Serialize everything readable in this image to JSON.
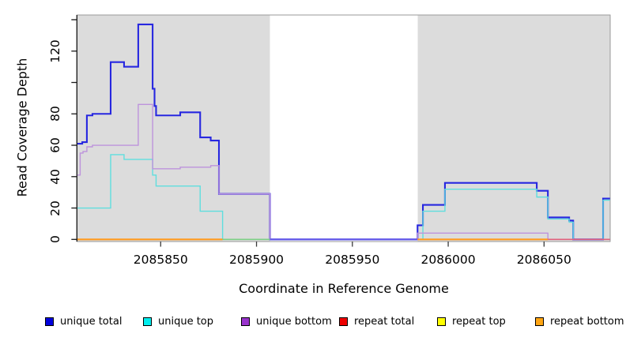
{
  "y_axis": {
    "title": "Read Coverage Depth",
    "range": [
      0,
      143
    ],
    "ticks": [
      {
        "value": 0,
        "label": "0"
      },
      {
        "value": 20,
        "label": "20"
      },
      {
        "value": 40,
        "label": "40"
      },
      {
        "value": 60,
        "label": "60"
      },
      {
        "value": 80,
        "label": "80"
      },
      {
        "value": 100,
        "label": ""
      },
      {
        "value": 120,
        "label": "120"
      },
      {
        "value": 140,
        "label": ""
      }
    ]
  },
  "x_axis": {
    "title": "Coordinate in Reference Genome",
    "range": [
      2085806.3,
      2086084.4
    ],
    "ticks": [
      {
        "value": 2085850,
        "label": "2085850"
      },
      {
        "value": 2085900,
        "label": "2085900"
      },
      {
        "value": 2085950,
        "label": "2085950"
      },
      {
        "value": 2086000,
        "label": "2086000"
      },
      {
        "value": 2086050,
        "label": "2086050"
      }
    ]
  },
  "plot": {
    "background_color": "#ffffff",
    "covered_region_color": "#dcdcdc",
    "border_color": "#9a9a9a",
    "axis_color": "#1a1a1a",
    "covered_regions": [
      {
        "from": 2085806.3,
        "to": 2085907.0
      },
      {
        "from": 2085984.0,
        "to": 2086084.4
      }
    ]
  },
  "chart_data": {
    "type": "line",
    "style": "step",
    "title": "",
    "xlabel": "Coordinate in Reference Genome",
    "ylabel": "Read Coverage Depth",
    "xlim": [
      2085806.3,
      2086084.4
    ],
    "ylim": [
      0,
      143
    ],
    "grid": false,
    "legend_position": "bottom",
    "series": [
      {
        "name": "unique total",
        "color": "#2727e0",
        "stroke_width": 2.1,
        "points": [
          [
            2085806.3,
            61
          ],
          [
            2085809.1,
            62
          ],
          [
            2085811.5,
            79
          ],
          [
            2085814.4,
            80
          ],
          [
            2085823.9,
            113
          ],
          [
            2085830.9,
            110
          ],
          [
            2085838.3,
            137
          ],
          [
            2085845.8,
            96
          ],
          [
            2085846.8,
            85
          ],
          [
            2085847.6,
            79
          ],
          [
            2085860.2,
            81
          ],
          [
            2085870.6,
            65
          ],
          [
            2085876.1,
            63
          ],
          [
            2085880.4,
            29
          ],
          [
            2085907.0,
            0
          ],
          [
            2085984.0,
            9
          ],
          [
            2085986.8,
            22
          ],
          [
            2085998.3,
            36
          ],
          [
            2086046.2,
            31
          ],
          [
            2086052.0,
            14
          ],
          [
            2086063.1,
            12
          ],
          [
            2086065.2,
            0
          ],
          [
            2086080.8,
            26
          ],
          [
            2086084.4,
            26
          ]
        ]
      },
      {
        "name": "unique top",
        "color": "#5fdede",
        "stroke_width": 1.4,
        "points": [
          [
            2085806.3,
            20
          ],
          [
            2085823.9,
            54
          ],
          [
            2085830.9,
            51
          ],
          [
            2085845.8,
            41
          ],
          [
            2085847.6,
            34
          ],
          [
            2085870.6,
            18
          ],
          [
            2085882.3,
            0
          ],
          [
            2085986.8,
            18
          ],
          [
            2085998.3,
            32
          ],
          [
            2086046.2,
            27
          ],
          [
            2086052.0,
            13
          ],
          [
            2086063.1,
            11
          ],
          [
            2086065.2,
            0
          ],
          [
            2086080.8,
            25
          ],
          [
            2086084.4,
            25
          ]
        ]
      },
      {
        "name": "unique bottom",
        "color": "#bd93dc",
        "stroke_width": 1.4,
        "points": [
          [
            2085806.3,
            41
          ],
          [
            2085808.0,
            55
          ],
          [
            2085809.5,
            56
          ],
          [
            2085811.5,
            59
          ],
          [
            2085814.4,
            60
          ],
          [
            2085838.3,
            86
          ],
          [
            2085845.8,
            45
          ],
          [
            2085860.2,
            46
          ],
          [
            2085876.1,
            47
          ],
          [
            2085880.4,
            29
          ],
          [
            2085907.0,
            0
          ],
          [
            2085984.0,
            4
          ],
          [
            2086052.0,
            0
          ],
          [
            2086084.4,
            0
          ]
        ]
      }
    ],
    "zero_line_segments": [
      {
        "name": "repeat-bottom-left",
        "color": "#ff9a1e",
        "from": 2085806.3,
        "to": 2085882.3,
        "stroke_width": 2.2
      },
      {
        "name": "overlap-cyan-yellow",
        "color": "#7ccf85",
        "from": 2085882.3,
        "to": 2085907.0,
        "stroke_width": 1.7
      },
      {
        "name": "overlap-blue-purple",
        "color": "#655ae8",
        "from": 2085907.0,
        "to": 2085984.0,
        "stroke_width": 2.0
      },
      {
        "name": "repeat-bottom-right",
        "color": "#ff9a1e",
        "from": 2085984.0,
        "to": 2086052.0,
        "stroke_width": 2.2
      },
      {
        "name": "overlap-red-purple",
        "color": "#e0617d",
        "from": 2086052.0,
        "to": 2086084.4,
        "stroke_width": 1.7
      }
    ]
  },
  "legend": {
    "items": [
      {
        "label": "unique total",
        "color": "#0000dd"
      },
      {
        "label": "unique top",
        "color": "#00eeee"
      },
      {
        "label": "unique bottom",
        "color": "#9933cc"
      },
      {
        "label": "repeat total",
        "color": "#ee0000"
      },
      {
        "label": "repeat top",
        "color": "#ffff00"
      },
      {
        "label": "repeat bottom",
        "color": "#ffa513"
      }
    ]
  }
}
